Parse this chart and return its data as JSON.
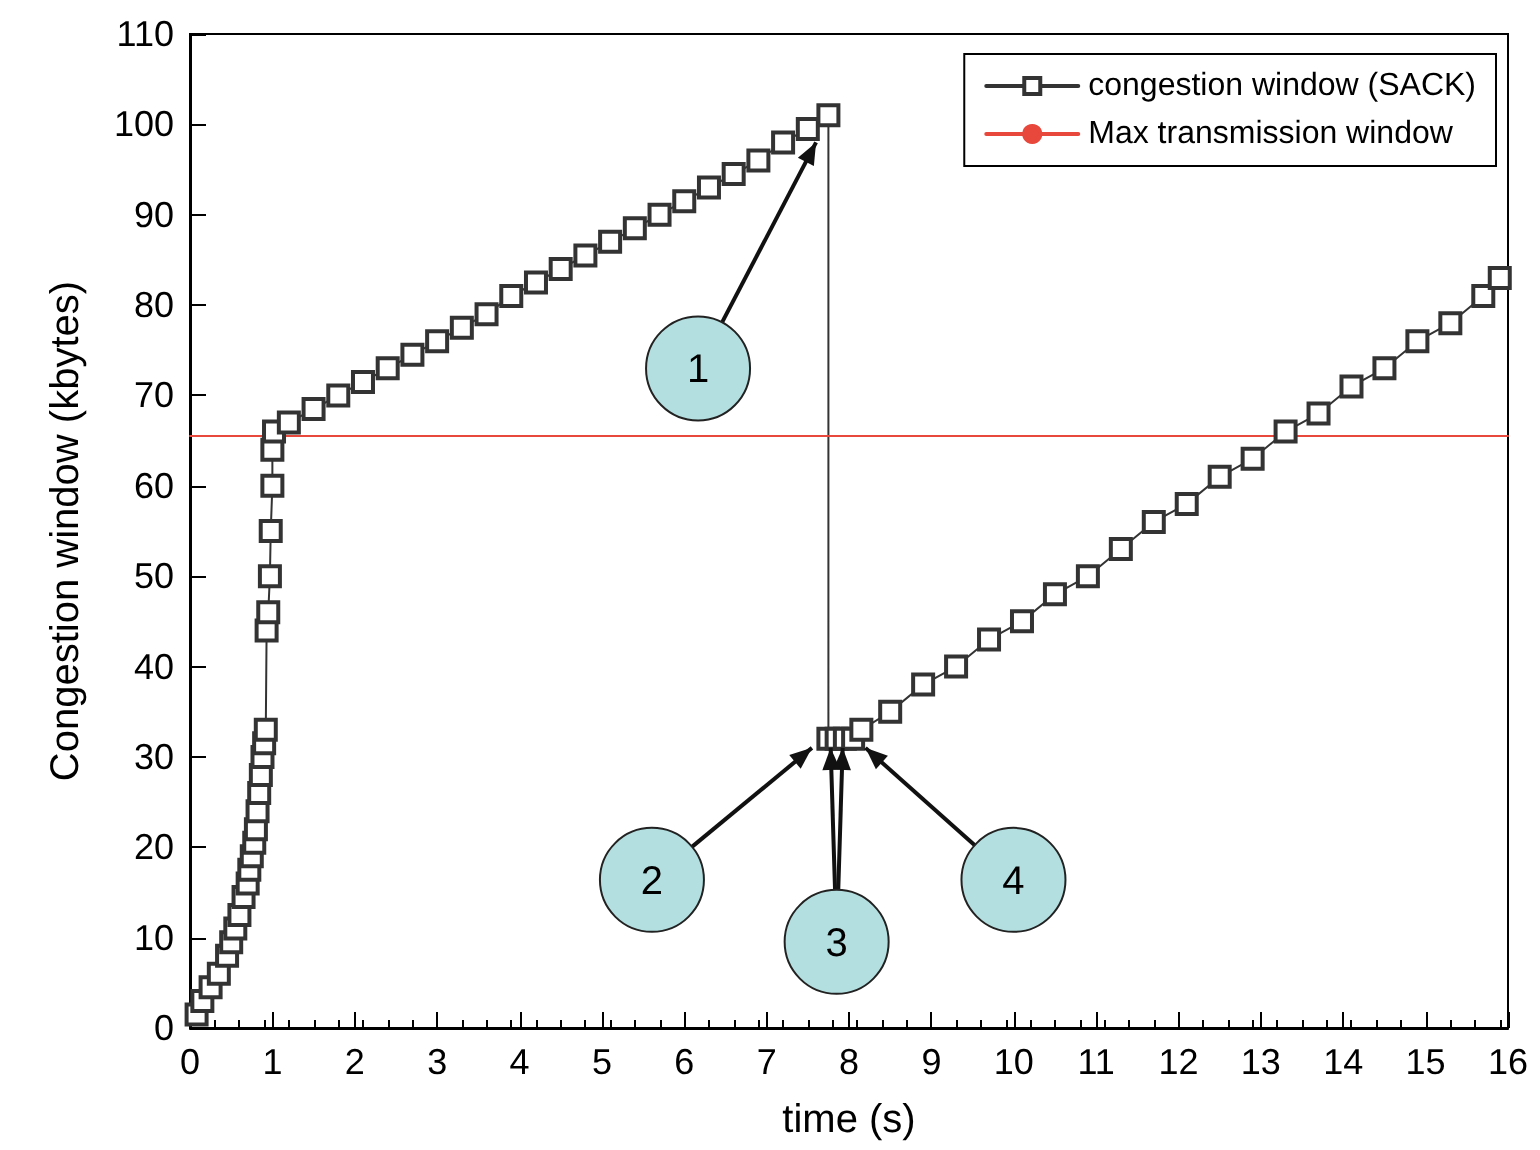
{
  "chart_data": {
    "type": "line",
    "xlabel": "time (s)",
    "ylabel": "Congestion window (kbytes)",
    "xlim": [
      0,
      16
    ],
    "xticks": [
      0,
      1,
      2,
      3,
      4,
      5,
      6,
      7,
      8,
      9,
      10,
      11,
      12,
      13,
      14,
      15,
      16
    ],
    "ylim": [
      0,
      110
    ],
    "yticks": [
      0,
      10,
      20,
      30,
      40,
      50,
      60,
      70,
      80,
      90,
      100,
      110
    ],
    "grid": false,
    "legend": "top right",
    "series": [
      {
        "name": "congestion window (SACK)",
        "color": "#333333",
        "marker": "square",
        "x": [
          0.08,
          0.15,
          0.25,
          0.35,
          0.45,
          0.5,
          0.55,
          0.6,
          0.65,
          0.7,
          0.72,
          0.75,
          0.78,
          0.8,
          0.82,
          0.84,
          0.86,
          0.88,
          0.9,
          0.92,
          0.93,
          0.95,
          0.97,
          0.98,
          1.0,
          1.0,
          1.02,
          1.2,
          1.5,
          1.8,
          2.1,
          2.4,
          2.7,
          3.0,
          3.3,
          3.6,
          3.9,
          4.2,
          4.5,
          4.8,
          5.1,
          5.4,
          5.7,
          6.0,
          6.3,
          6.6,
          6.9,
          7.2,
          7.5,
          7.75,
          7.75,
          7.85,
          7.95,
          8.05,
          8.15,
          8.5,
          8.9,
          9.3,
          9.7,
          10.1,
          10.5,
          10.9,
          11.3,
          11.7,
          12.1,
          12.5,
          12.9,
          13.3,
          13.7,
          14.1,
          14.5,
          14.9,
          15.3,
          15.7,
          15.9
        ],
        "values": [
          1.5,
          3,
          4.5,
          6,
          8,
          9.5,
          11,
          12.5,
          14.5,
          16,
          17.5,
          19,
          20.5,
          22,
          24,
          26,
          28,
          30,
          31.5,
          33,
          44,
          46,
          50,
          55,
          60,
          64,
          66,
          67,
          68.5,
          70,
          71.5,
          73,
          74.5,
          76,
          77.5,
          79,
          81,
          82.5,
          84,
          85.5,
          87,
          88.5,
          90,
          91.5,
          93,
          94.5,
          96,
          98,
          99.5,
          101,
          32,
          32,
          32,
          32,
          33,
          35,
          38,
          40,
          43,
          45,
          48,
          50,
          53,
          56,
          58,
          61,
          63,
          66,
          68,
          71,
          73,
          76,
          78,
          81,
          83
        ]
      },
      {
        "name": "Max transmission window",
        "color": "#e8473c",
        "marker": "none",
        "x": [
          0,
          16
        ],
        "values": [
          65.5,
          65.5
        ]
      }
    ],
    "annotations": [
      {
        "text": "1",
        "x": 7.6,
        "y": 98
      },
      {
        "text": "2",
        "x": 7.55,
        "y": 31
      },
      {
        "text": "3",
        "x": 7.85,
        "y": 31
      },
      {
        "text": "4",
        "x": 8.2,
        "y": 31
      }
    ]
  }
}
